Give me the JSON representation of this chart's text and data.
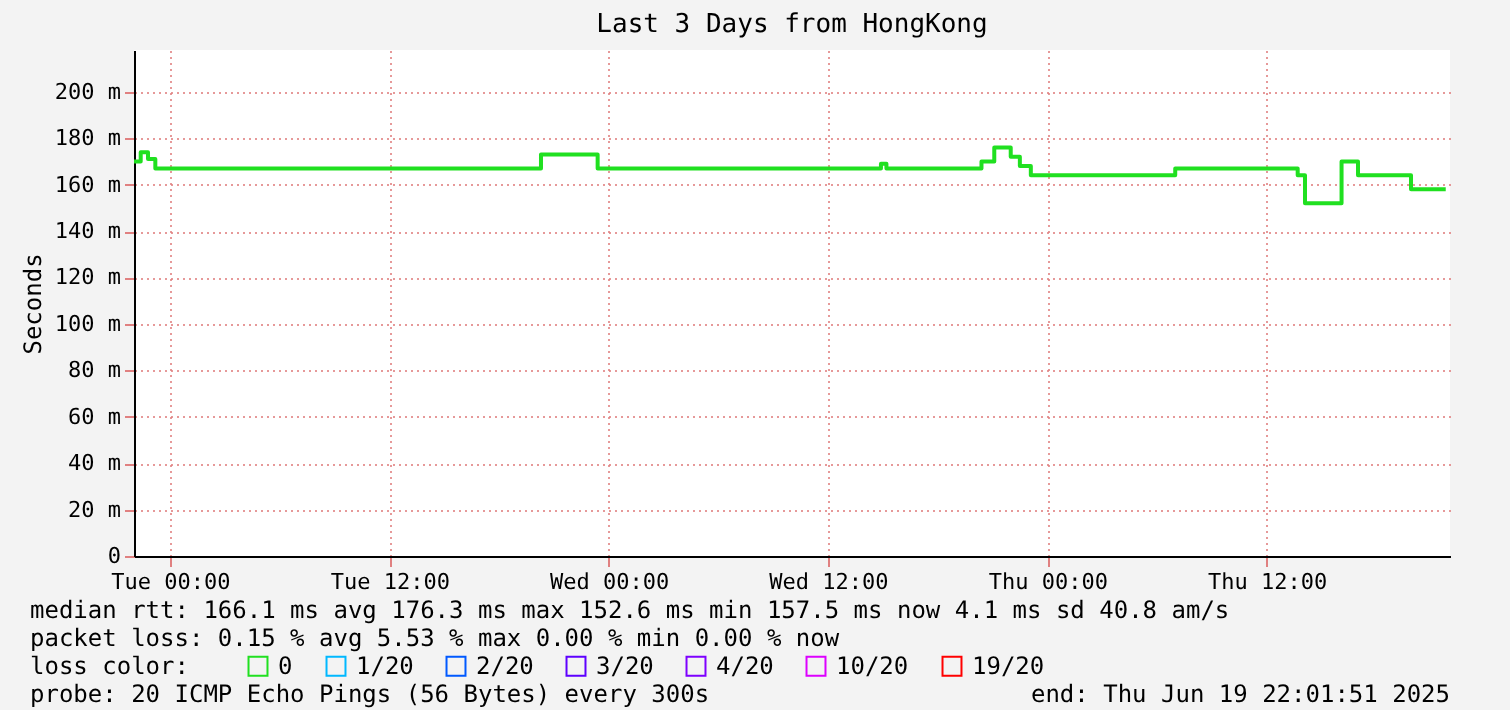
{
  "chart_data": {
    "type": "step",
    "title": "Last 3 Days from HongKong",
    "ylabel": "Seconds",
    "x": [
      "2025-06-16T22:02",
      "2025-06-16T22:24",
      "2025-06-16T22:48",
      "2025-06-16T23:12",
      "2025-06-17T20:18",
      "2025-06-17T23:24",
      "2025-06-18T14:54",
      "2025-06-18T15:12",
      "2025-06-18T20:24",
      "2025-06-18T21:06",
      "2025-06-18T22:00",
      "2025-06-18T22:30",
      "2025-06-18T23:06",
      "2025-06-19T07:00",
      "2025-06-19T13:42",
      "2025-06-19T14:06",
      "2025-06-19T16:06",
      "2025-06-19T17:00",
      "2025-06-19T19:54",
      "2025-06-19T21:48"
    ],
    "series": [
      {
        "name": "0",
        "color": "#20e020",
        "values": [
          170,
          174,
          171,
          167,
          173,
          167,
          169,
          167,
          170,
          176,
          172,
          168,
          164,
          167,
          164,
          152,
          170,
          164,
          158,
          158
        ]
      },
      {
        "name": "1/20",
        "color": "#00b8ff",
        "values": [
          null,
          null,
          null,
          null,
          null,
          null,
          null,
          null,
          null,
          null,
          null,
          null,
          null,
          null,
          null,
          null,
          null,
          null,
          null,
          null
        ]
      },
      {
        "name": "2/20",
        "color": "#0059ff",
        "values": [
          null,
          null,
          null,
          null,
          null,
          null,
          null,
          null,
          null,
          null,
          null,
          null,
          null,
          null,
          null,
          null,
          null,
          null,
          null,
          null
        ]
      },
      {
        "name": "3/20",
        "color": "#5e00ff",
        "values": [
          null,
          null,
          null,
          null,
          null,
          null,
          null,
          null,
          null,
          null,
          null,
          null,
          null,
          null,
          null,
          null,
          null,
          null,
          null,
          null
        ]
      },
      {
        "name": "4/20",
        "color": "#7e00ff",
        "values": [
          null,
          null,
          null,
          null,
          null,
          null,
          null,
          null,
          null,
          null,
          null,
          null,
          null,
          null,
          null,
          null,
          null,
          null,
          null,
          null
        ]
      },
      {
        "name": "10/20",
        "color": "#dd00ff",
        "values": [
          null,
          null,
          null,
          null,
          null,
          null,
          null,
          null,
          null,
          null,
          null,
          null,
          null,
          null,
          null,
          null,
          null,
          null,
          null,
          null
        ]
      },
      {
        "name": "19/20",
        "color": "#ff0000",
        "values": [
          null,
          null,
          null,
          null,
          null,
          null,
          null,
          null,
          null,
          null,
          null,
          null,
          null,
          null,
          null,
          null,
          null,
          null,
          null,
          null
        ]
      }
    ],
    "legend_title": "loss color:",
    "legend": "bottom",
    "xlim": [
      "2025-06-16T22:02",
      "2025-06-19T22:02"
    ],
    "xticks": [
      {
        "value": "2025-06-17T00:00",
        "label": "Tue 00:00"
      },
      {
        "value": "2025-06-17T12:00",
        "label": "Tue 12:00"
      },
      {
        "value": "2025-06-18T00:00",
        "label": "Wed 00:00"
      },
      {
        "value": "2025-06-18T12:00",
        "label": "Wed 12:00"
      },
      {
        "value": "2025-06-19T00:00",
        "label": "Thu 00:00"
      },
      {
        "value": "2025-06-19T12:00",
        "label": "Thu 12:00"
      }
    ],
    "ylim": [
      0,
      218
    ],
    "yticks": [
      0,
      {
        "value": 20,
        "label": "20 m"
      },
      {
        "value": 40,
        "label": "40 m"
      },
      {
        "value": 60,
        "label": "60 m"
      },
      {
        "value": 80,
        "label": "80 m"
      },
      {
        "value": 100,
        "label": "100 m"
      },
      {
        "value": 120,
        "label": "120 m"
      },
      {
        "value": 140,
        "label": "140 m"
      },
      {
        "value": 160,
        "label": "160 m"
      },
      {
        "value": 180,
        "label": "180 m"
      },
      {
        "value": 200,
        "label": "200 m"
      }
    ],
    "grid": true,
    "marker": "none",
    "line_style": "solid",
    "annotations": [
      "median rtt:  166.1 ms avg  176.3 ms max  152.6 ms min  157.5 ms now  4.1 ms sd  40.8   am/s",
      "packet loss: 0.15 % avg  5.53 % max  0.00 % min  0.00 % now",
      "probe:       20 ICMP Echo Pings (56 Bytes) every 300s",
      "end: Thu Jun 19 22:01:51 2025"
    ]
  }
}
